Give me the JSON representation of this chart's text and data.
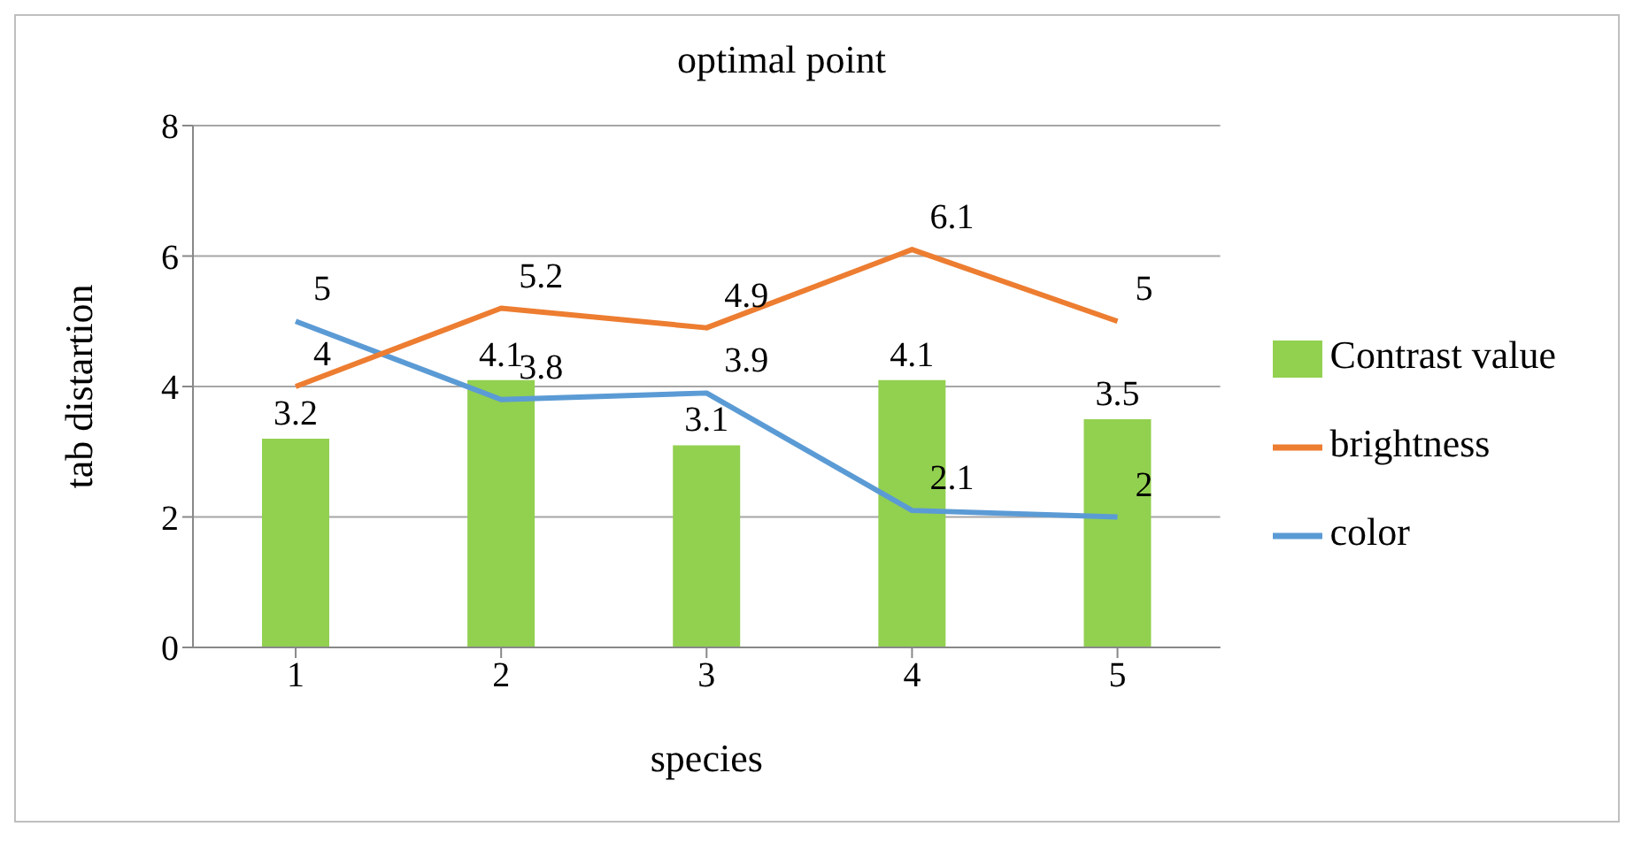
{
  "chart_data": {
    "type": "bar",
    "title": "optimal point",
    "xlabel": "species",
    "ylabel": "tab distartion",
    "categories": [
      "1",
      "2",
      "3",
      "4",
      "5"
    ],
    "series": [
      {
        "name": "Contrast value",
        "color": "#92d050",
        "values": [
          3.2,
          4.1,
          3.1,
          4.1,
          3.5
        ]
      },
      {
        "name": "color",
        "type": "line",
        "color": "#5b9bd5",
        "values": [
          5,
          3.8,
          3.9,
          2.1,
          2
        ]
      },
      {
        "name": "brightness",
        "type": "line",
        "color": "#ed7d31",
        "values": [
          4,
          5.2,
          4.9,
          6.1,
          5
        ]
      }
    ],
    "ylim": [
      0,
      8
    ],
    "yticks": [
      0,
      2,
      4,
      6,
      8
    ],
    "grid": "y",
    "legend": "right",
    "data_labels": true,
    "marker": "none"
  }
}
